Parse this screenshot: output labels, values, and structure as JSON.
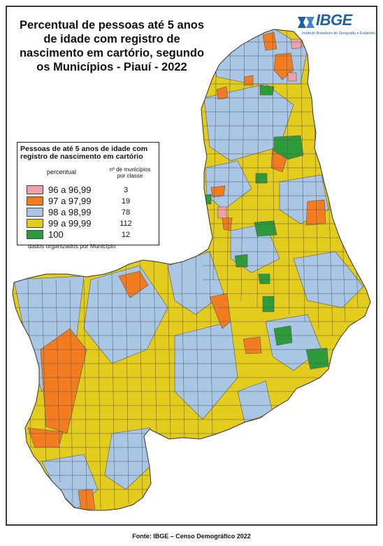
{
  "title": "Percentual de pessoas até 5 anos de idade com registro de nascimento em cartório, segundo os Municípios - Piauí - 2022",
  "title_lines": [
    "Percentual de pessoas até 5 anos",
    "de idade com registro de",
    "nascimento em cartório, segundo",
    "os Municípios - Piauí - 2022"
  ],
  "logo": {
    "name": "IBGE",
    "subtitle": "Instituto Brasileiro de Geografia e Estatística",
    "icon": "ibge-logo-icon"
  },
  "legend": {
    "title_lines": [
      "Pessoas de até 5 anos de idade com",
      "registro de nascimento em cartório"
    ],
    "col_percent": "percentual",
    "col_count_lines": [
      "nº de municípios",
      "por classe"
    ],
    "classes": [
      {
        "range": "96 a 96,99",
        "count": "3",
        "color": "#f0a0a8"
      },
      {
        "range": "97 a 97,99",
        "count": "19",
        "color": "#f47c20"
      },
      {
        "range": "98 a 98,99",
        "count": "78",
        "color": "#a9c6e4"
      },
      {
        "range": "99 a 99,99",
        "count": "112",
        "color": "#e3cc1c"
      },
      {
        "range": "100",
        "count": "12",
        "color": "#2e9b3a"
      }
    ],
    "note": "dados organizados por Município"
  },
  "source": "Fonte: IBGE – Censo Demográfico 2022",
  "colors": {
    "border": "#3a3a3a",
    "outline": "#555555",
    "logo_blue": "#1f5fa8"
  }
}
